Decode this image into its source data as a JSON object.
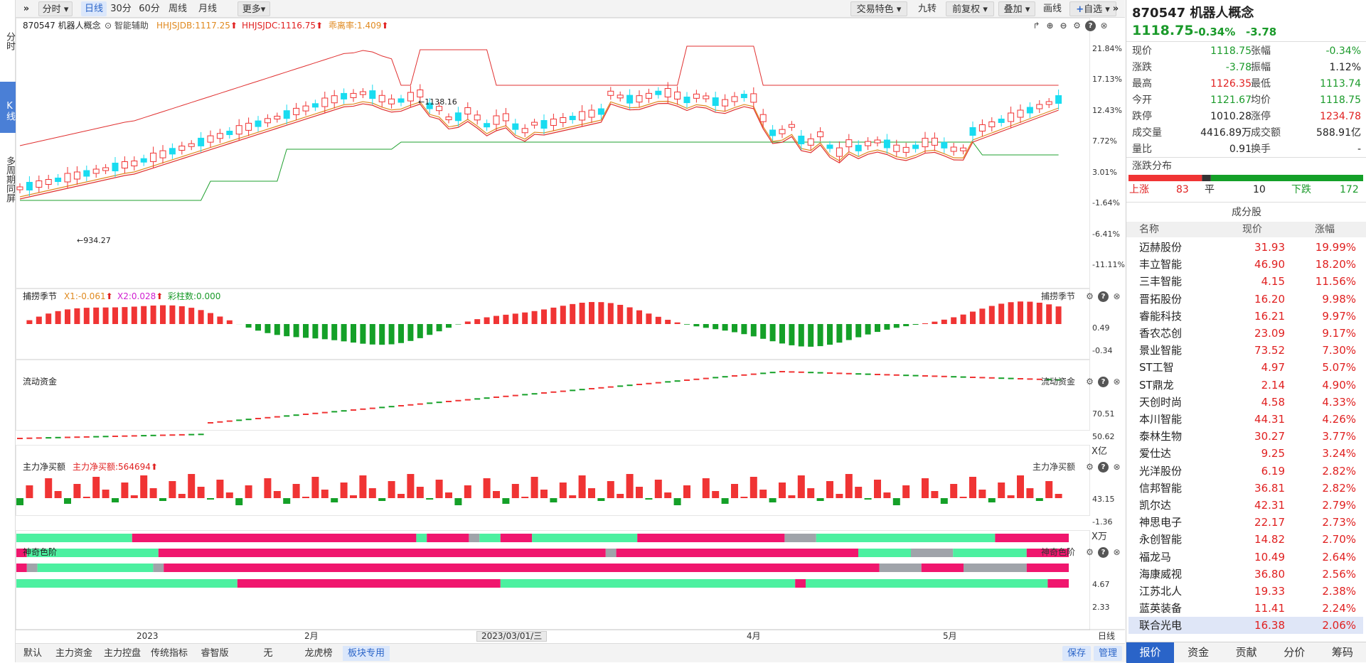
{
  "left_rail": {
    "fenshi": "分时",
    "kline": "K线",
    "multi": "多周期同屏"
  },
  "toolbar": {
    "expand": "»",
    "fenshi": "分时",
    "daily": "日线",
    "m30": "30分",
    "m60": "60分",
    "weekly": "周线",
    "monthly": "月线",
    "more": "更多",
    "trade_feature": "交易特色",
    "jiuzhuan": "九转",
    "adjust": "前复权",
    "overlay": "叠加",
    "draw": "画线",
    "add_watch": "自选",
    "collapse": "»"
  },
  "panels": {
    "main": {
      "title": "870547 机器人概念",
      "assist": "智能辅助",
      "ind1": "HHJSJDB:1117.25",
      "ind2": "HHJSJDC:1116.75",
      "ind3": "乖离率:1.409",
      "yticks": [
        "21.84%",
        "17.13%",
        "12.43%",
        "7.72%",
        "3.01%",
        "-1.64%",
        "-6.41%",
        "-11.11%"
      ],
      "high_label": "1138.16",
      "low_label": "934.27"
    },
    "season": {
      "title": "捕捞季节",
      "x1": "X1:-0.061",
      "x2": "X2:0.028",
      "count": "彩柱数:0.000",
      "right_title": "捕捞季节",
      "yticks": [
        "0.49",
        "-0.34"
      ]
    },
    "flow": {
      "title": "流动资金",
      "right_title": "流动资金",
      "yticks": [
        "70.51",
        "50.62"
      ],
      "unit": "X亿"
    },
    "netbuy": {
      "title": "主力净买额",
      "val": "主力净买额:564694",
      "right_title": "主力净买额",
      "yticks": [
        "43.15",
        "-1.36"
      ],
      "unit": "X万"
    },
    "color": {
      "title": "神奇色阶",
      "right_title": "神奇色阶",
      "yticks": [
        "4.67",
        "2.33"
      ]
    }
  },
  "xaxis": {
    "labels": [
      "2023",
      "2月",
      "2023/03/01/三",
      "4月",
      "5月"
    ],
    "period": "日线"
  },
  "bottom_tabs": [
    "默认",
    "主力资金",
    "主力控盘",
    "传统指标",
    "睿智版",
    "无",
    "龙虎榜",
    "板块专用"
  ],
  "bottom_active": "板块专用",
  "bottom_buttons": {
    "save": "保存",
    "manage": "管理"
  },
  "quote": {
    "name": "870547 机器人概念",
    "price": "1118.75",
    "pct": "-0.34%",
    "chg": "-3.78",
    "rows": [
      {
        "l": "现价",
        "v": "1118.75",
        "vc": "green",
        "l2": "张幅",
        "v2": "-0.34%",
        "v2c": "green"
      },
      {
        "l": "涨跌",
        "v": "-3.78",
        "vc": "green",
        "l2": "振幅",
        "v2": "1.12%",
        "v2c": "blk"
      },
      {
        "l": "最高",
        "v": "1126.35",
        "vc": "red",
        "l2": "最低",
        "v2": "1113.74",
        "v2c": "green"
      },
      {
        "l": "今开",
        "v": "1121.67",
        "vc": "green",
        "l2": "均价",
        "v2": "1118.75",
        "v2c": "green"
      },
      {
        "l": "跌停",
        "v": "1010.28",
        "vc": "blk",
        "l2": "涨停",
        "v2": "1234.78",
        "v2c": "red"
      },
      {
        "l": "成交量",
        "v": "4416.89万",
        "vc": "blk",
        "l2": "成交额",
        "v2": "588.91亿",
        "v2c": "blk"
      },
      {
        "l": "量比",
        "v": "0.91",
        "vc": "blk",
        "l2": "换手",
        "v2": "-",
        "v2c": "blk"
      }
    ],
    "dist_title": "涨跌分布",
    "up_label": "上涨",
    "up": "83",
    "flat_label": "平",
    "flat": "10",
    "down_label": "下跌",
    "down": "172",
    "comp_title": "成分股",
    "col_name": "名称",
    "col_price": "现价",
    "col_pct": "涨幅",
    "components": [
      {
        "name": "迈赫股份",
        "price": "31.93",
        "pct": "19.99%"
      },
      {
        "name": "丰立智能",
        "price": "46.90",
        "pct": "18.20%"
      },
      {
        "name": "三丰智能",
        "price": "4.15",
        "pct": "11.56%"
      },
      {
        "name": "晋拓股份",
        "price": "16.20",
        "pct": "9.98%"
      },
      {
        "name": "睿能科技",
        "price": "16.21",
        "pct": "9.97%"
      },
      {
        "name": "香农芯创",
        "price": "23.09",
        "pct": "9.17%"
      },
      {
        "name": "景业智能",
        "price": "73.52",
        "pct": "7.30%"
      },
      {
        "name": "ST工智",
        "price": "4.97",
        "pct": "5.07%"
      },
      {
        "name": "ST鼎龙",
        "price": "2.14",
        "pct": "4.90%"
      },
      {
        "name": "天创时尚",
        "price": "4.58",
        "pct": "4.33%"
      },
      {
        "name": "本川智能",
        "price": "44.31",
        "pct": "4.26%"
      },
      {
        "name": "泰林生物",
        "price": "30.27",
        "pct": "3.77%"
      },
      {
        "name": "爱仕达",
        "price": "9.25",
        "pct": "3.24%"
      },
      {
        "name": "光洋股份",
        "price": "6.19",
        "pct": "2.82%"
      },
      {
        "name": "信邦智能",
        "price": "36.81",
        "pct": "2.82%"
      },
      {
        "name": "凯尔达",
        "price": "42.31",
        "pct": "2.79%"
      },
      {
        "name": "神思电子",
        "price": "22.17",
        "pct": "2.73%"
      },
      {
        "name": "永创智能",
        "price": "14.82",
        "pct": "2.70%"
      },
      {
        "name": "福龙马",
        "price": "10.49",
        "pct": "2.64%"
      },
      {
        "name": "海康威视",
        "price": "36.80",
        "pct": "2.56%"
      },
      {
        "name": "江苏北人",
        "price": "19.33",
        "pct": "2.38%"
      },
      {
        "name": "蓝英装备",
        "price": "11.41",
        "pct": "2.24%"
      },
      {
        "name": "联合光电",
        "price": "16.38",
        "pct": "2.06%"
      }
    ],
    "tabs": [
      "报价",
      "资金",
      "贡献",
      "分价",
      "筹码"
    ]
  },
  "colors": {
    "up": "#f03434",
    "down": "#19dcf0",
    "ma_red": "#e03030",
    "ma_orange": "#e08a20",
    "band_green": "#1fa02f",
    "bar_green": "#14a028",
    "pink": "#f0166e",
    "mint": "#4cf0a0",
    "gray": "#a0a4aa"
  }
}
